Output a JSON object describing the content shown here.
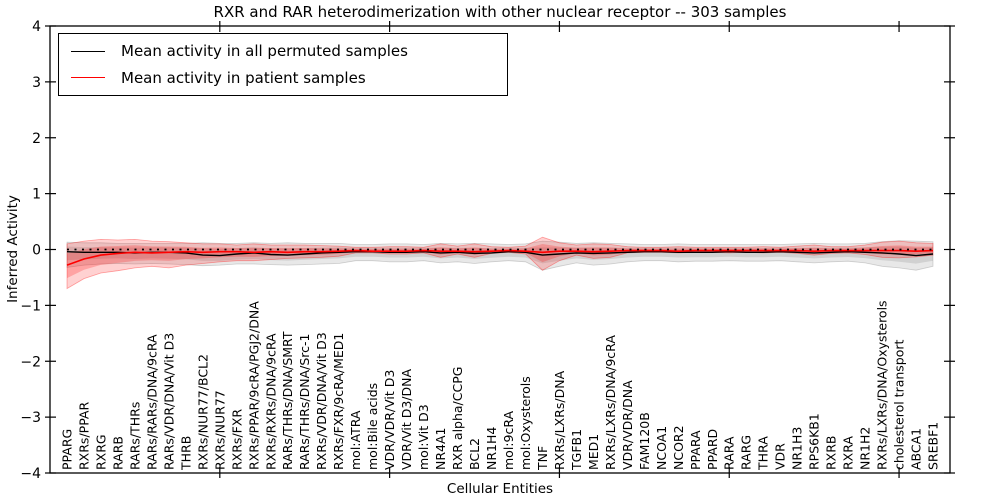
{
  "figure": {
    "sample_count": 303
  },
  "legend": {
    "entries": [
      {
        "label": "Mean activity in all permuted samples",
        "color": "#000000"
      },
      {
        "label": "Mean activity in patient samples",
        "color": "#ff0000"
      }
    ]
  },
  "chart_data": {
    "type": "line",
    "title": "RXR and RAR heterodimerization with other nuclear receptor -- 303 samples",
    "xlabel": "Cellular Entities",
    "ylabel": "Inferred Activity",
    "ylim": [
      -4,
      4
    ],
    "xlim": [
      0,
      53
    ],
    "grid": false,
    "legend_position": "upper left",
    "ytick_values": [
      4,
      3,
      2,
      1,
      0,
      -1,
      -2,
      -3,
      -4
    ],
    "ytick_labels": [
      "4",
      "3",
      "2",
      "1",
      "0",
      "−1",
      "−2",
      "−3",
      "−4"
    ],
    "xtick_values": [
      10,
      20,
      30,
      40,
      50
    ],
    "baseline": 0,
    "categories": [
      "PPARG",
      "RXRs/PPAR",
      "RXRG",
      "RARB",
      "RARs/THRs",
      "RARs/RARs/DNA/9cRA",
      "RARs/VDR/DNA/Vit D3",
      "THRB",
      "RXRs/NUR77/BCL2",
      "RXRs/NUR77",
      "RXRs/FXR",
      "RXRs/PPAR/9cRA/PGJ2/DNA",
      "RXRs/RXRs/DNA/9cRA",
      "RARs/THRs/DNA/SMRT",
      "RARs/THRs/DNA/Src-1",
      "RXRs/VDR/DNA/Vit D3",
      "RXRs/FXR/9cRA/MED1",
      "mol:ATRA",
      "mol:Bile acids",
      "VDR/VDR/Vit D3",
      "VDR/Vit D3/DNA",
      "mol:Vit D3",
      "NR4A1",
      "RXR alpha/CCPG",
      "BCL2",
      "NR1H4",
      "mol:9cRA",
      "mol:Oxysterols",
      "TNF",
      "RXRs/LXRs/DNA",
      "TGFB1",
      "MED1",
      "RXRs/LXRs/DNA/9cRA",
      "VDR/VDR/DNA",
      "FAM120B",
      "NCOA1",
      "NCOR2",
      "PPARA",
      "PPARD",
      "RARA",
      "RARG",
      "THRA",
      "VDR",
      "NR1H3",
      "RPS6KB1",
      "RXRB",
      "RXRA",
      "NR1H2",
      "RXRs/LXRs/DNA/Oxysterols",
      "cholesterol transport",
      "ABCA1",
      "SREBF1"
    ],
    "series": [
      {
        "name": "Mean activity in all permuted samples",
        "color": "#000000",
        "style": "solid",
        "values": [
          -0.04,
          -0.05,
          -0.05,
          -0.05,
          -0.06,
          -0.05,
          -0.05,
          -0.06,
          -0.1,
          -0.11,
          -0.08,
          -0.06,
          -0.09,
          -0.1,
          -0.08,
          -0.06,
          -0.05,
          -0.04,
          -0.04,
          -0.05,
          -0.05,
          -0.04,
          -0.06,
          -0.05,
          -0.07,
          -0.06,
          -0.04,
          -0.05,
          -0.1,
          -0.08,
          -0.06,
          -0.07,
          -0.06,
          -0.05,
          -0.04,
          -0.04,
          -0.05,
          -0.05,
          -0.05,
          -0.04,
          -0.05,
          -0.05,
          -0.04,
          -0.05,
          -0.06,
          -0.05,
          -0.04,
          -0.05,
          -0.06,
          -0.08,
          -0.11,
          -0.08
        ]
      },
      {
        "name": "Mean activity in patient samples",
        "color": "#ff0000",
        "style": "solid",
        "values": [
          -0.28,
          -0.17,
          -0.1,
          -0.07,
          -0.05,
          -0.06,
          -0.05,
          -0.04,
          -0.05,
          -0.04,
          -0.04,
          -0.05,
          -0.04,
          -0.05,
          -0.04,
          -0.04,
          -0.03,
          -0.02,
          -0.03,
          -0.03,
          -0.03,
          -0.02,
          -0.03,
          -0.03,
          -0.04,
          -0.03,
          -0.02,
          -0.03,
          -0.05,
          -0.03,
          -0.03,
          -0.04,
          -0.03,
          -0.02,
          -0.02,
          -0.02,
          -0.03,
          -0.02,
          -0.02,
          -0.02,
          -0.02,
          -0.02,
          -0.02,
          -0.02,
          -0.03,
          -0.02,
          -0.02,
          -0.02,
          -0.02,
          -0.02,
          -0.03,
          -0.02
        ]
      }
    ],
    "bands": [
      {
        "name": "permuted samples spread",
        "color": "#808080",
        "lower": [
          -0.32,
          -0.28,
          -0.26,
          -0.25,
          -0.26,
          -0.25,
          -0.26,
          -0.27,
          -0.29,
          -0.28,
          -0.26,
          -0.26,
          -0.27,
          -0.28,
          -0.27,
          -0.26,
          -0.25,
          -0.2,
          -0.2,
          -0.22,
          -0.22,
          -0.2,
          -0.24,
          -0.22,
          -0.25,
          -0.22,
          -0.2,
          -0.22,
          -0.37,
          -0.3,
          -0.24,
          -0.28,
          -0.26,
          -0.22,
          -0.2,
          -0.2,
          -0.22,
          -0.21,
          -0.21,
          -0.2,
          -0.21,
          -0.21,
          -0.2,
          -0.22,
          -0.24,
          -0.22,
          -0.21,
          -0.24,
          -0.3,
          -0.33,
          -0.37,
          -0.3
        ],
        "upper": [
          0.13,
          0.12,
          0.12,
          0.11,
          0.11,
          0.11,
          0.11,
          0.11,
          0.12,
          0.11,
          0.11,
          0.12,
          0.11,
          0.12,
          0.11,
          0.11,
          0.11,
          0.09,
          0.09,
          0.1,
          0.1,
          0.09,
          0.11,
          0.1,
          0.11,
          0.1,
          0.09,
          0.1,
          0.15,
          0.13,
          0.11,
          0.12,
          0.11,
          0.1,
          0.09,
          0.09,
          0.1,
          0.09,
          0.09,
          0.09,
          0.09,
          0.09,
          0.09,
          0.1,
          0.11,
          0.1,
          0.1,
          0.11,
          0.14,
          0.16,
          0.15,
          0.14
        ]
      },
      {
        "name": "patient samples spread",
        "color": "#ff0000",
        "lower": [
          -0.7,
          -0.52,
          -0.42,
          -0.38,
          -0.33,
          -0.3,
          -0.33,
          -0.28,
          -0.25,
          -0.22,
          -0.2,
          -0.2,
          -0.18,
          -0.16,
          -0.15,
          -0.14,
          -0.12,
          -0.06,
          -0.06,
          -0.08,
          -0.08,
          -0.06,
          -0.14,
          -0.08,
          -0.14,
          -0.07,
          -0.05,
          -0.08,
          -0.37,
          -0.2,
          -0.1,
          -0.16,
          -0.14,
          -0.06,
          -0.05,
          -0.05,
          -0.06,
          -0.05,
          -0.05,
          -0.06,
          -0.05,
          -0.06,
          -0.05,
          -0.07,
          -0.1,
          -0.07,
          -0.06,
          -0.09,
          -0.14,
          -0.15,
          -0.13,
          -0.1
        ],
        "upper": [
          0.1,
          0.15,
          0.18,
          0.17,
          0.18,
          0.15,
          0.14,
          0.12,
          0.1,
          0.1,
          0.08,
          0.1,
          0.08,
          0.08,
          0.08,
          0.07,
          0.06,
          0.04,
          0.04,
          0.05,
          0.05,
          0.04,
          0.1,
          0.06,
          0.1,
          0.05,
          0.04,
          0.06,
          0.22,
          0.12,
          0.08,
          0.1,
          0.09,
          0.05,
          0.04,
          0.04,
          0.05,
          0.04,
          0.04,
          0.04,
          0.04,
          0.05,
          0.04,
          0.06,
          0.08,
          0.05,
          0.05,
          0.08,
          0.13,
          0.15,
          0.12,
          0.11
        ]
      }
    ]
  }
}
